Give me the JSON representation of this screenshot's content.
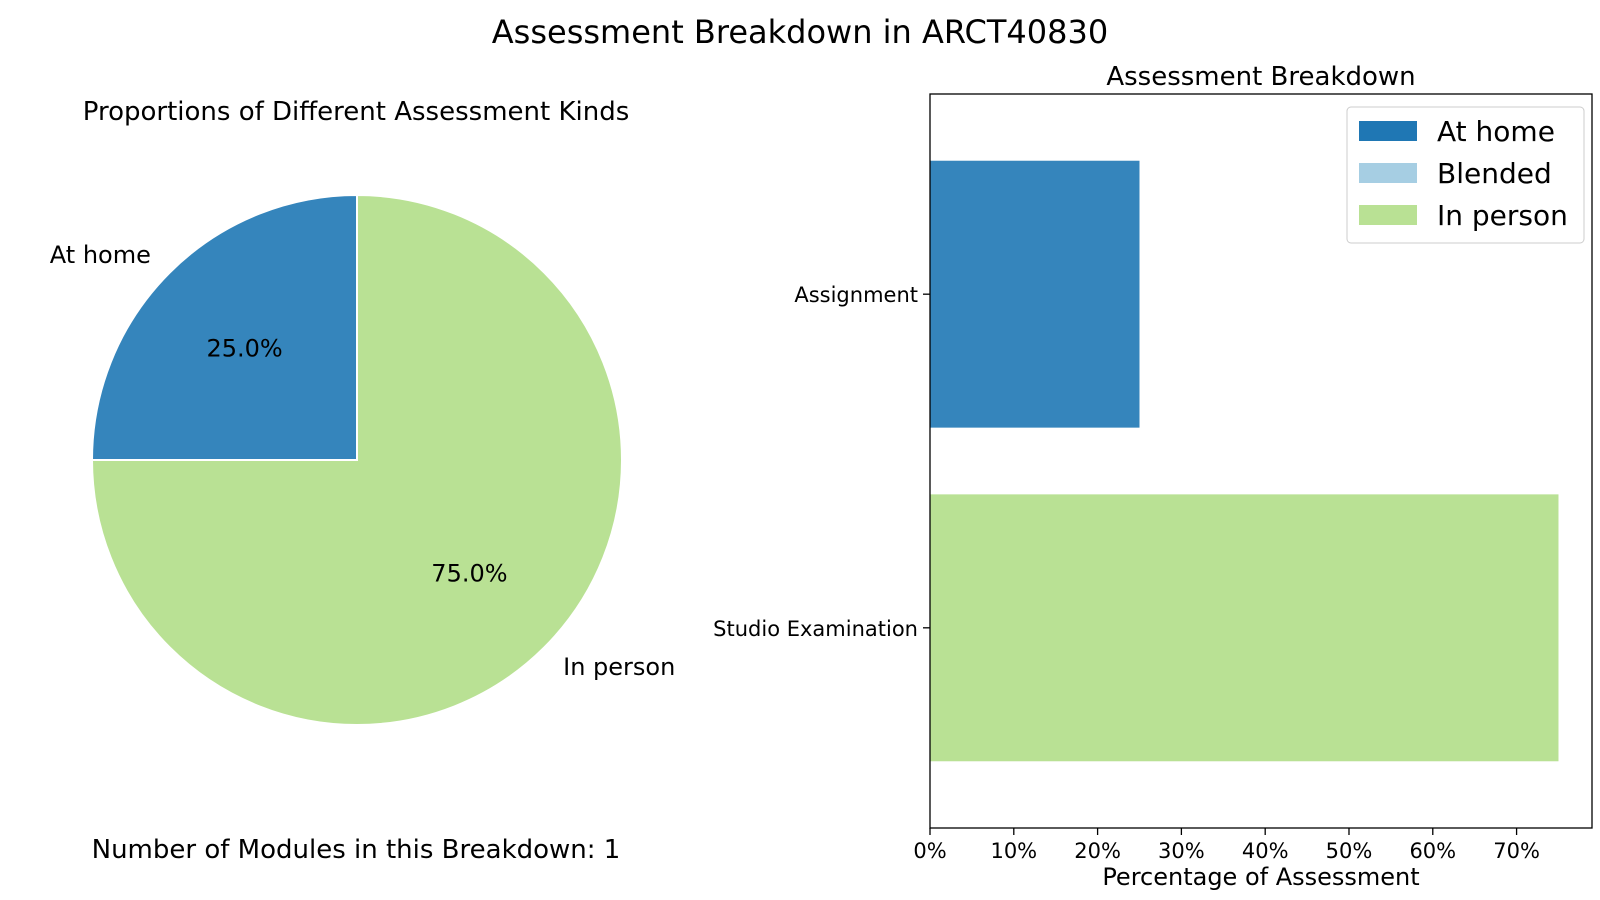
{
  "suptitle": "Assessment Breakdown in ARCT40830",
  "footer_text": "Number of Modules in this Breakdown: 1",
  "colors": {
    "at_home": "#1f77b4",
    "at_home_fill": "#3585bc",
    "blended": "#a6cee3",
    "in_person": "#b9e194"
  },
  "chart_data": [
    {
      "type": "pie",
      "title": "Proportions of Different Assessment Kinds",
      "slices": [
        {
          "label": "At home",
          "value": 25.0,
          "pct_label": "25.0%",
          "color": "#3585bc"
        },
        {
          "label": "In person",
          "value": 75.0,
          "pct_label": "75.0%",
          "color": "#b9e194"
        }
      ],
      "start_angle": 90,
      "direction": "counterclockwise"
    },
    {
      "type": "bar",
      "orientation": "horizontal",
      "title": "Assessment Breakdown",
      "xlabel": "Percentage of Assessment",
      "ylabel": "",
      "categories": [
        "Assignment",
        "Studio Examination"
      ],
      "series": [
        {
          "name": "At home",
          "color": "#3585bc",
          "values": [
            25,
            0
          ]
        },
        {
          "name": "Blended",
          "color": "#a6cee3",
          "values": [
            0,
            0
          ]
        },
        {
          "name": "In person",
          "color": "#b9e194",
          "values": [
            0,
            75
          ]
        }
      ],
      "xlim": [
        0,
        79
      ],
      "xticks": [
        0,
        10,
        20,
        30,
        40,
        50,
        60,
        70
      ],
      "xtick_labels": [
        "0%",
        "10%",
        "20%",
        "30%",
        "40%",
        "50%",
        "60%",
        "70%"
      ],
      "legend": {
        "position": "top-right",
        "entries": [
          {
            "label": "At home",
            "color": "#1f77b4"
          },
          {
            "label": "Blended",
            "color": "#a6cee3"
          },
          {
            "label": "In person",
            "color": "#b9e194"
          }
        ]
      },
      "grid": false
    }
  ]
}
